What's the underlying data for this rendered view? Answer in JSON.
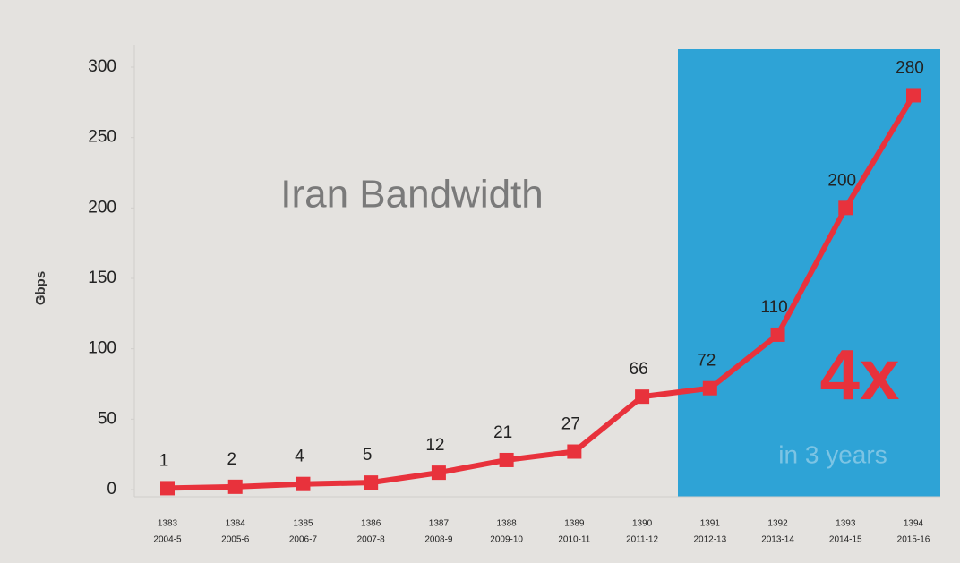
{
  "chart_data": {
    "type": "line",
    "title": "Iran Bandwidth",
    "y_label": "Gbps",
    "annotations": [
      "4x",
      "in 3 years"
    ],
    "categories": [
      [
        "1383",
        "2004-5"
      ],
      [
        "1384",
        "2005-6"
      ],
      [
        "1385",
        "2006-7"
      ],
      [
        "1386",
        "2007-8"
      ],
      [
        "1387",
        "2008-9"
      ],
      [
        "1388",
        "2009-10"
      ],
      [
        "1389",
        "2010-11"
      ],
      [
        "1390",
        "2011-12"
      ],
      [
        "1391",
        "2012-13"
      ],
      [
        "1392",
        "2013-14"
      ],
      [
        "1393",
        "2014-15"
      ],
      [
        "1394",
        "2015-16"
      ]
    ],
    "values": [
      1,
      2,
      4,
      5,
      12,
      21,
      27,
      66,
      72,
      110,
      200,
      280
    ],
    "color": "#e8323c",
    "ylim": [
      0,
      300
    ],
    "yticks": [
      0,
      50,
      100,
      150,
      200,
      250,
      300
    ],
    "grid": false
  }
}
